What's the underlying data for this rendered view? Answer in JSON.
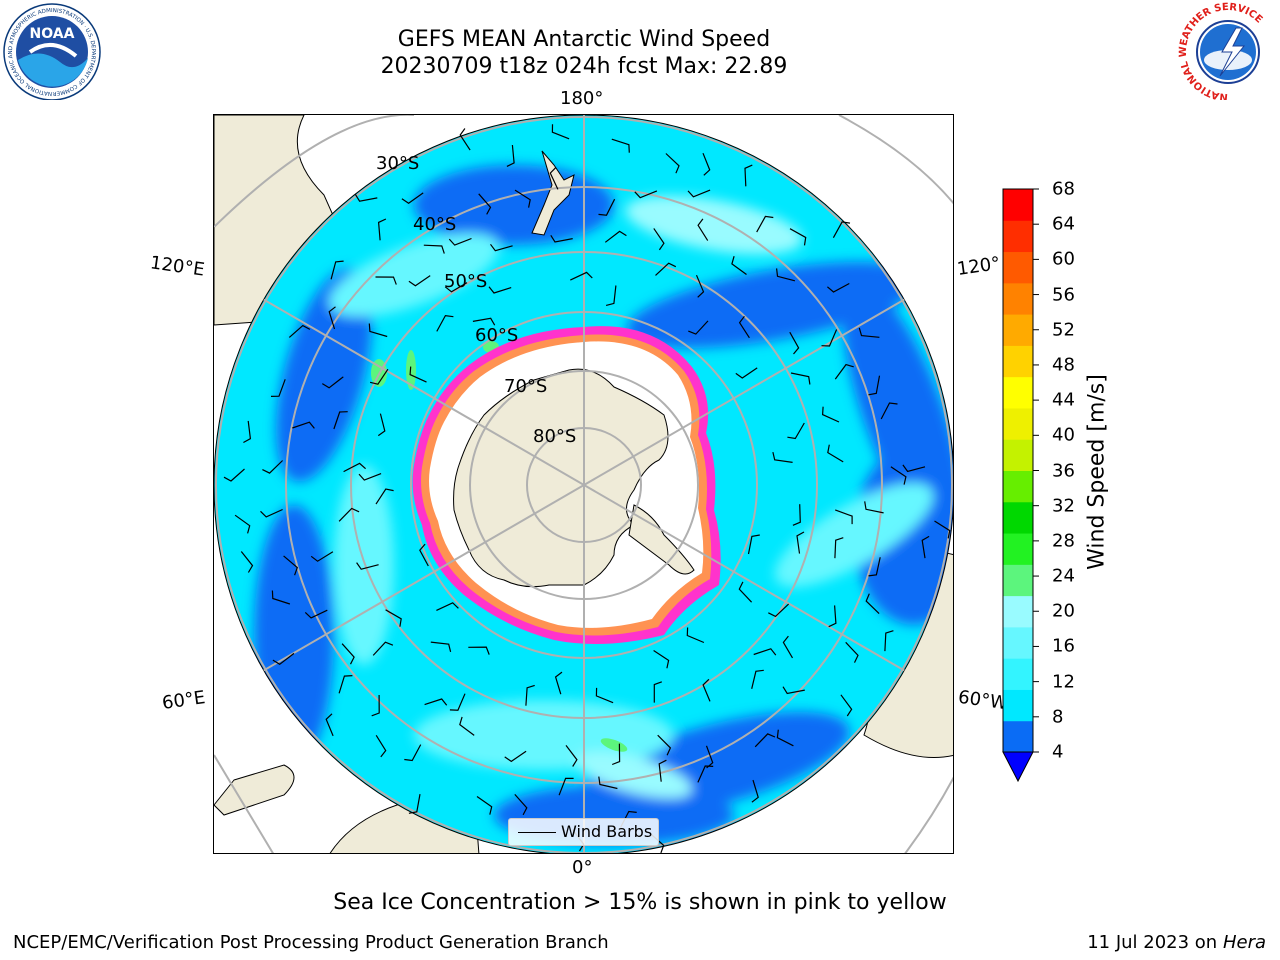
{
  "title": {
    "line1": "GEFS MEAN Antarctic Wind Speed",
    "line2": "20230709 t18z 024h fcst   Max: 22.89"
  },
  "map": {
    "projection": "south-polar-stereographic",
    "meridian_labels": {
      "top": "180°",
      "bottom": "0°",
      "upper_left": "120°E",
      "upper_right": "120°",
      "lower_left": "60°E",
      "lower_right": "60°W"
    },
    "latitude_labels": [
      "30°S",
      "40°S",
      "50°S",
      "60°S",
      "70°S",
      "80°S"
    ],
    "legend_label": "Wind Barbs"
  },
  "colorbar": {
    "label": "Wind Speed [m/s]",
    "ticks": [
      "4",
      "8",
      "12",
      "16",
      "20",
      "24",
      "28",
      "32",
      "36",
      "40",
      "44",
      "48",
      "52",
      "56",
      "60",
      "64",
      "68"
    ],
    "colors": [
      "#0a6cf5",
      "#00e8ff",
      "#33f4ff",
      "#66f7ff",
      "#99fbff",
      "#5cf57d",
      "#22f222",
      "#00d800",
      "#66ee00",
      "#c4f200",
      "#eef000",
      "#ffff00",
      "#ffd200",
      "#ffaa00",
      "#ff8200",
      "#ff5a00",
      "#ff2e00",
      "#ff0000"
    ],
    "under_color": "#0000ff"
  },
  "palette": {
    "land": "#efebd8",
    "ocean_base": "#00e8ff",
    "sea_ice_edge": "#ff33cc",
    "grid": "#b0b0b0"
  },
  "logos": {
    "noaa": "NOAA",
    "noaa_ring_text": "NATIONAL OCEANIC AND ATMOSPHERIC ADMINISTRATION · U.S. DEPARTMENT OF COMMERCE",
    "nws_ring_text": "NATIONAL WEATHER SERVICE"
  },
  "caption": "Sea Ice Concentration > 15% is shown in pink to yellow",
  "footer": {
    "left": "NCEP/EMC/Verification Post Processing Product Generation Branch",
    "right_date": "11 Jul 2023 on ",
    "right_host": "Hera"
  }
}
